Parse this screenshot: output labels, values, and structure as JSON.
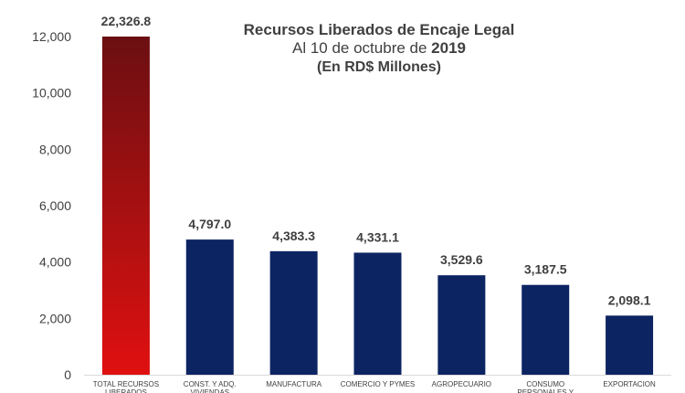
{
  "chart_data": {
    "type": "bar",
    "title": "Recursos Liberados de Encaje Legal",
    "subtitle_prefix": "Al 10 de octubre de ",
    "subtitle_year": "2019",
    "subtitle2": "(En RD$ Millones)",
    "categories": [
      [
        "TOTAL RECURSOS",
        "LIBERADOS"
      ],
      [
        "CONST. Y ADQ.",
        "VIVIENDAS"
      ],
      [
        "MANUFACTURA"
      ],
      [
        "COMERCIO Y PYMES"
      ],
      [
        "AGROPECUARIO"
      ],
      [
        "CONSUMO",
        "PERSONALES Y"
      ],
      [
        "EXPORTACION"
      ]
    ],
    "values": [
      22326.8,
      4797.0,
      4383.3,
      4331.1,
      3529.6,
      3187.5,
      2098.1
    ],
    "data_labels": [
      "22,326.8",
      "4,797.0",
      "4,383.3",
      "4,331.1",
      "3,529.6",
      "3,187.5",
      "2,098.1"
    ],
    "yticks": [
      0,
      2000,
      4000,
      6000,
      8000,
      10000,
      12000
    ],
    "ytick_labels": [
      "0",
      "2,000",
      "4,000",
      "6,000",
      "8,000",
      "10,000",
      "12,000"
    ],
    "ylim": [
      0,
      12000
    ],
    "xlabel": "",
    "ylabel": "",
    "grid": false,
    "colors": {
      "total_top": "#6b0f12",
      "total_bottom": "#e01010",
      "bar": "#0d2463",
      "text": "#404040",
      "axis": "#d9d9d9"
    }
  }
}
